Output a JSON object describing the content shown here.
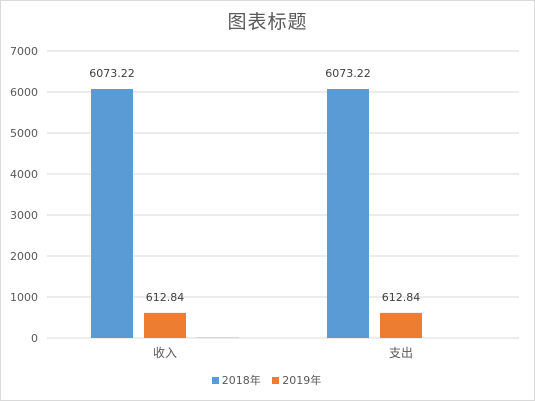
{
  "chart_data": {
    "type": "bar",
    "title": "图表标题",
    "categories": [
      "收入",
      "支出"
    ],
    "series": [
      {
        "name": "2018年",
        "color": "#5b9bd5",
        "values": [
          6073.22,
          6073.22
        ],
        "labels": [
          "6073.22",
          "6073.22"
        ]
      },
      {
        "name": "2019年",
        "color": "#ed7d31",
        "values": [
          612.84,
          612.84
        ],
        "labels": [
          "612.84",
          "612.84"
        ]
      },
      {
        "name": "",
        "color": "#a5a5a5",
        "values": [
          10,
          0
        ],
        "labels": [
          "",
          ""
        ]
      }
    ],
    "yticks": [
      "0",
      "1000",
      "2000",
      "3000",
      "4000",
      "5000",
      "6000",
      "7000"
    ],
    "ylim": [
      0,
      7000
    ],
    "grid": true,
    "legend": "bottom"
  }
}
